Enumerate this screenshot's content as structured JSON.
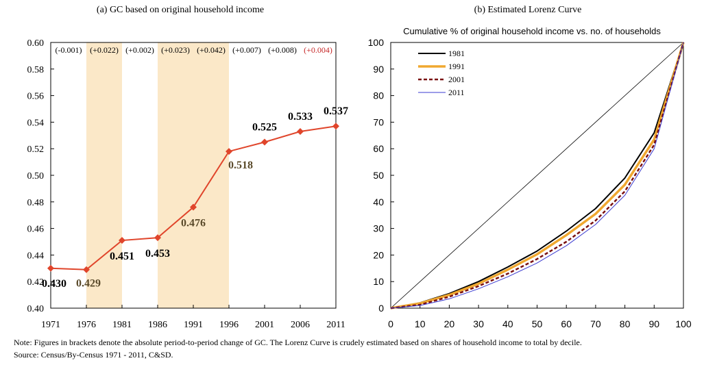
{
  "chart_data": [
    {
      "type": "line",
      "title": "(a) GC based on original household income",
      "x": [
        "1971",
        "1976",
        "1981",
        "1986",
        "1991",
        "1996",
        "2001",
        "2006",
        "2011"
      ],
      "values": [
        0.43,
        0.429,
        0.451,
        0.453,
        0.476,
        0.518,
        0.525,
        0.533,
        0.537
      ],
      "data_labels": [
        "0.430",
        "0.429",
        "0.451",
        "0.453",
        "0.476",
        "0.518",
        "0.525",
        "0.533",
        "0.537"
      ],
      "changes": [
        "(-0.001)",
        "(+0.022)",
        "(+0.002)",
        "(+0.023)",
        "(+0.042)",
        "(+0.007)",
        "(+0.008)",
        "(+0.004)"
      ],
      "shaded_periods": [
        [
          "1976",
          "1981"
        ],
        [
          "1986",
          "1996"
        ]
      ],
      "ylim": [
        0.4,
        0.6
      ],
      "yticks": [
        "0.40",
        "0.42",
        "0.44",
        "0.46",
        "0.48",
        "0.50",
        "0.52",
        "0.54",
        "0.56",
        "0.58",
        "0.60"
      ],
      "colors": {
        "line": "#e0452b",
        "shade": "#fbe8c8",
        "highlight_change": "#c62828",
        "label_highlight": "#5a4a2a"
      }
    },
    {
      "type": "line",
      "title": "(b) Estimated Lorenz Curve",
      "subtitle": "Cumulative % of original household income vs. no. of households",
      "xlim": [
        0,
        100
      ],
      "ylim": [
        0,
        100
      ],
      "xticks": [
        "0",
        "10",
        "20",
        "30",
        "40",
        "50",
        "60",
        "70",
        "80",
        "90",
        "100"
      ],
      "yticks": [
        "0",
        "10",
        "20",
        "30",
        "40",
        "50",
        "60",
        "70",
        "80",
        "90",
        "100"
      ],
      "legend_position": "top-left",
      "x": [
        0,
        10,
        20,
        30,
        40,
        50,
        60,
        70,
        80,
        90,
        100
      ],
      "series": [
        {
          "name": "1981",
          "color": "#000000",
          "style": "solid",
          "values": [
            0,
            2,
            5.5,
            10,
            15.5,
            21.5,
            29,
            37.5,
            49,
            66,
            100
          ]
        },
        {
          "name": "1991",
          "color": "#f0a830",
          "style": "thick",
          "values": [
            0,
            1.8,
            5,
            9.2,
            14.5,
            20.3,
            27.5,
            35.5,
            46.5,
            63.5,
            100
          ]
        },
        {
          "name": "2001",
          "color": "#7a1010",
          "style": "dashed",
          "values": [
            0,
            1.3,
            4.3,
            8.3,
            13,
            18.5,
            25,
            33,
            44,
            61.5,
            100
          ]
        },
        {
          "name": "2011",
          "color": "#3a3ad0",
          "style": "thin",
          "values": [
            0,
            1,
            3.5,
            7.3,
            11.8,
            17,
            23.5,
            31.5,
            42.5,
            60,
            100
          ]
        }
      ]
    }
  ],
  "note_text": "Note:    Figures in brackets denote the absolute period-to-period change of GC.  The Lorenz Curve is crudely estimated based on shares of household income to total by decile.",
  "source_text": "Source: Census/By-Census 1971 - 2011, C&SD."
}
